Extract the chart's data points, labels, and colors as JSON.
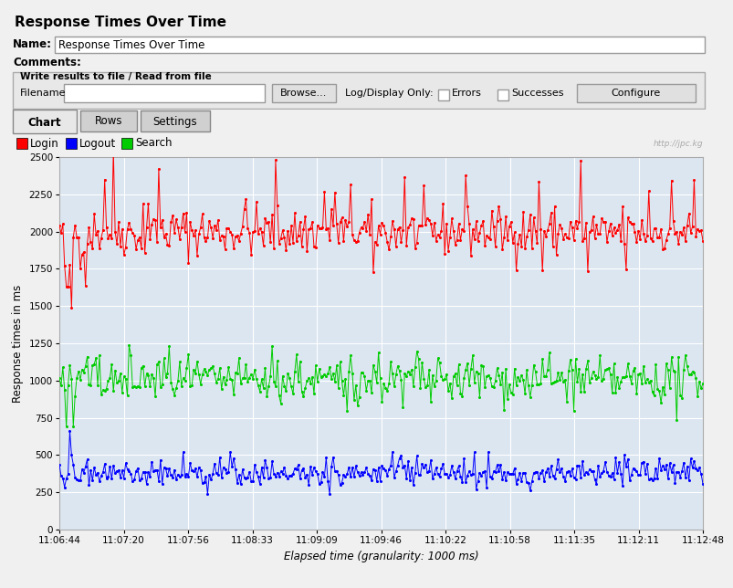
{
  "title": "Response Times Over Time",
  "name_label": "Name:",
  "name_value": "Response Times Over Time",
  "comments_label": "Comments:",
  "write_results_label": "Write results to file / Read from file",
  "filename_label": "Filename",
  "browse_btn": "Browse...",
  "log_display": "Log/Display Only:",
  "errors_label": "Errors",
  "successes_label": "Successes",
  "configure_btn": "Configure",
  "tab_chart": "Chart",
  "tab_rows": "Rows",
  "tab_settings": "Settings",
  "legend_labels": [
    "Login",
    "Logout",
    "Search"
  ],
  "legend_colors": [
    "#ff0000",
    "#0000ff",
    "#00cc00"
  ],
  "ylabel": "Response times in ms",
  "xlabel": "Elapsed time (granularity: 1000 ms)",
  "watermark": "http://jpc.kg",
  "x_tick_labels": [
    "11:06:44",
    "11:07:20",
    "11:07:56",
    "11:08:33",
    "11:09:09",
    "11:09:46",
    "11:10:22",
    "11:10:58",
    "11:11:35",
    "11:12:11",
    "11:12:48"
  ],
  "ylim": [
    0,
    2500
  ],
  "yticks": [
    0,
    250,
    500,
    750,
    1000,
    1250,
    1500,
    1750,
    2000,
    2250,
    2500
  ],
  "bg_color": "#dce6f1",
  "grid_color": "#ffffff",
  "panel_bg": "#f0f0f0",
  "title_bg": "#d4d0c8",
  "tab_active_bg": "#e8e8e8",
  "tab_inactive_bg": "#c8c8c8",
  "write_panel_bg": "#e8e8e8"
}
